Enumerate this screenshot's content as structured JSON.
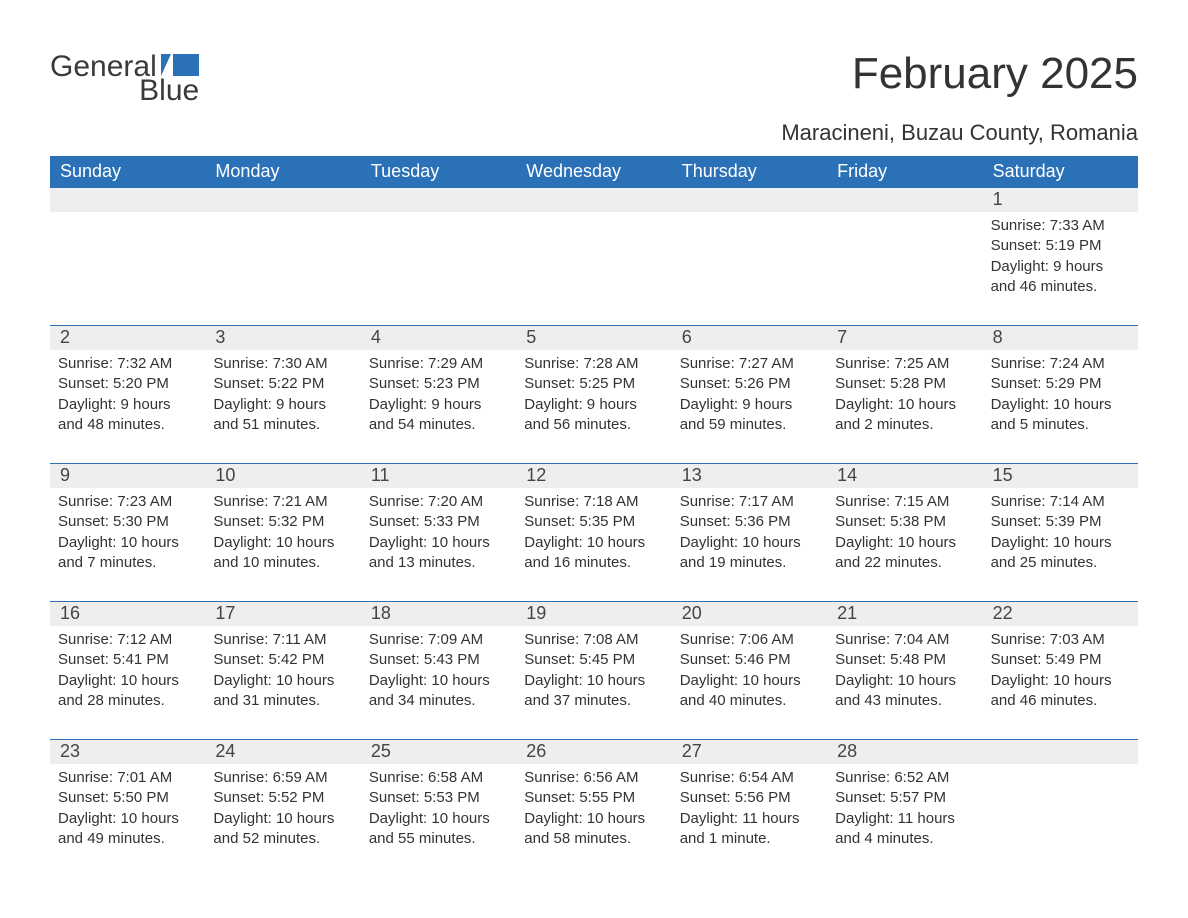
{
  "brand": {
    "word1": "General",
    "word2": "Blue"
  },
  "title": "February 2025",
  "location": "Maracineni, Buzau County, Romania",
  "colors": {
    "header_bg": "#2a71b8",
    "header_text": "#ffffff",
    "daynum_bg": "#eeeeee",
    "body_text": "#333333",
    "brand_gray": "#3a3a3a",
    "brand_blue": "#2a71b8",
    "background": "#ffffff"
  },
  "day_headers": [
    "Sunday",
    "Monday",
    "Tuesday",
    "Wednesday",
    "Thursday",
    "Friday",
    "Saturday"
  ],
  "labels": {
    "sunrise": "Sunrise:",
    "sunset": "Sunset:",
    "daylight": "Daylight:"
  },
  "weeks": [
    [
      null,
      null,
      null,
      null,
      null,
      null,
      {
        "n": "1",
        "sunrise": "7:33 AM",
        "sunset": "5:19 PM",
        "daylight": "9 hours and 46 minutes."
      }
    ],
    [
      {
        "n": "2",
        "sunrise": "7:32 AM",
        "sunset": "5:20 PM",
        "daylight": "9 hours and 48 minutes."
      },
      {
        "n": "3",
        "sunrise": "7:30 AM",
        "sunset": "5:22 PM",
        "daylight": "9 hours and 51 minutes."
      },
      {
        "n": "4",
        "sunrise": "7:29 AM",
        "sunset": "5:23 PM",
        "daylight": "9 hours and 54 minutes."
      },
      {
        "n": "5",
        "sunrise": "7:28 AM",
        "sunset": "5:25 PM",
        "daylight": "9 hours and 56 minutes."
      },
      {
        "n": "6",
        "sunrise": "7:27 AM",
        "sunset": "5:26 PM",
        "daylight": "9 hours and 59 minutes."
      },
      {
        "n": "7",
        "sunrise": "7:25 AM",
        "sunset": "5:28 PM",
        "daylight": "10 hours and 2 minutes."
      },
      {
        "n": "8",
        "sunrise": "7:24 AM",
        "sunset": "5:29 PM",
        "daylight": "10 hours and 5 minutes."
      }
    ],
    [
      {
        "n": "9",
        "sunrise": "7:23 AM",
        "sunset": "5:30 PM",
        "daylight": "10 hours and 7 minutes."
      },
      {
        "n": "10",
        "sunrise": "7:21 AM",
        "sunset": "5:32 PM",
        "daylight": "10 hours and 10 minutes."
      },
      {
        "n": "11",
        "sunrise": "7:20 AM",
        "sunset": "5:33 PM",
        "daylight": "10 hours and 13 minutes."
      },
      {
        "n": "12",
        "sunrise": "7:18 AM",
        "sunset": "5:35 PM",
        "daylight": "10 hours and 16 minutes."
      },
      {
        "n": "13",
        "sunrise": "7:17 AM",
        "sunset": "5:36 PM",
        "daylight": "10 hours and 19 minutes."
      },
      {
        "n": "14",
        "sunrise": "7:15 AM",
        "sunset": "5:38 PM",
        "daylight": "10 hours and 22 minutes."
      },
      {
        "n": "15",
        "sunrise": "7:14 AM",
        "sunset": "5:39 PM",
        "daylight": "10 hours and 25 minutes."
      }
    ],
    [
      {
        "n": "16",
        "sunrise": "7:12 AM",
        "sunset": "5:41 PM",
        "daylight": "10 hours and 28 minutes."
      },
      {
        "n": "17",
        "sunrise": "7:11 AM",
        "sunset": "5:42 PM",
        "daylight": "10 hours and 31 minutes."
      },
      {
        "n": "18",
        "sunrise": "7:09 AM",
        "sunset": "5:43 PM",
        "daylight": "10 hours and 34 minutes."
      },
      {
        "n": "19",
        "sunrise": "7:08 AM",
        "sunset": "5:45 PM",
        "daylight": "10 hours and 37 minutes."
      },
      {
        "n": "20",
        "sunrise": "7:06 AM",
        "sunset": "5:46 PM",
        "daylight": "10 hours and 40 minutes."
      },
      {
        "n": "21",
        "sunrise": "7:04 AM",
        "sunset": "5:48 PM",
        "daylight": "10 hours and 43 minutes."
      },
      {
        "n": "22",
        "sunrise": "7:03 AM",
        "sunset": "5:49 PM",
        "daylight": "10 hours and 46 minutes."
      }
    ],
    [
      {
        "n": "23",
        "sunrise": "7:01 AM",
        "sunset": "5:50 PM",
        "daylight": "10 hours and 49 minutes."
      },
      {
        "n": "24",
        "sunrise": "6:59 AM",
        "sunset": "5:52 PM",
        "daylight": "10 hours and 52 minutes."
      },
      {
        "n": "25",
        "sunrise": "6:58 AM",
        "sunset": "5:53 PM",
        "daylight": "10 hours and 55 minutes."
      },
      {
        "n": "26",
        "sunrise": "6:56 AM",
        "sunset": "5:55 PM",
        "daylight": "10 hours and 58 minutes."
      },
      {
        "n": "27",
        "sunrise": "6:54 AM",
        "sunset": "5:56 PM",
        "daylight": "11 hours and 1 minute."
      },
      {
        "n": "28",
        "sunrise": "6:52 AM",
        "sunset": "5:57 PM",
        "daylight": "11 hours and 4 minutes."
      },
      null
    ]
  ]
}
